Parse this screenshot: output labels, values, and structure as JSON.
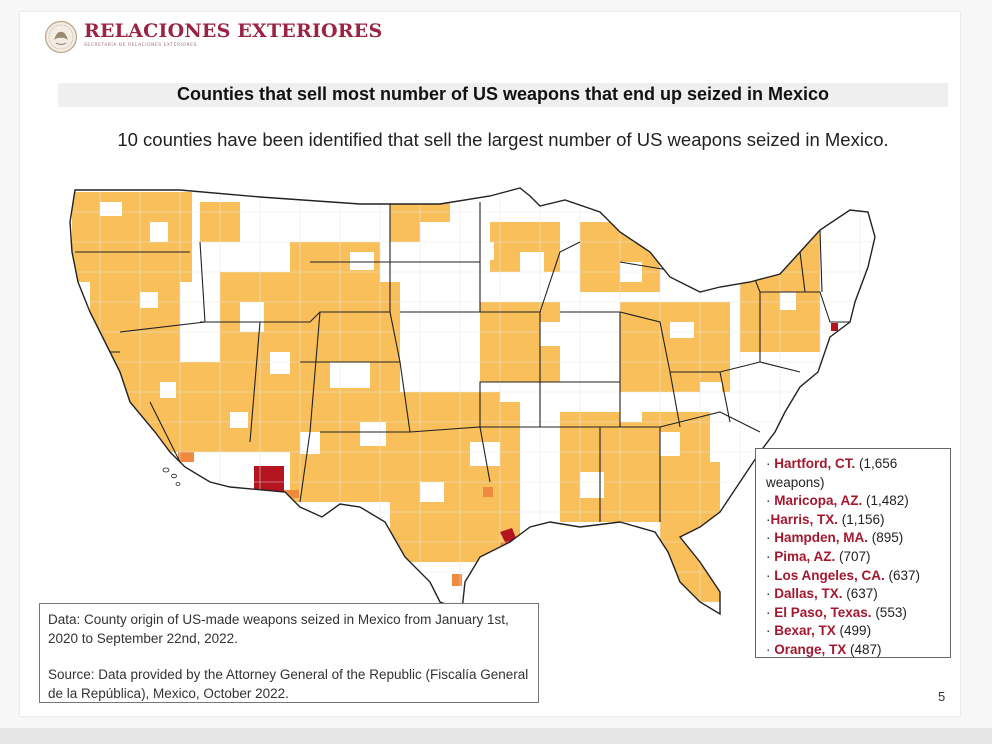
{
  "header": {
    "logo_icon": "mexican-eagle-seal-icon",
    "title": "RELACIONES EXTERIORES",
    "subtitle": "SECRETARÍA DE RELACIONES EXTERIORES",
    "brand_color": "#9a2445"
  },
  "title": "Counties that sell most number of US weapons that end up seized in Mexico",
  "subtitle": "10 counties have been identified that sell the largest number of US weapons seized in Mexico.",
  "map": {
    "icon": "us-county-map",
    "colors": {
      "low": "#f9bf5b",
      "medium": "#f08a3c",
      "high": "#b3141f",
      "none": "#ffffff",
      "border": "#222222"
    }
  },
  "legend": {
    "items": [
      {
        "name": "Hartford, CT.",
        "value": " (1,656 weapons)"
      },
      {
        "name": "Maricopa, AZ.",
        "value": " (1,482)"
      },
      {
        "name": "Harris, TX.",
        "value": " (1,156)"
      },
      {
        "name": "Hampden, MA.",
        "value": " (895)"
      },
      {
        "name": "Pima, AZ.",
        "value": " (707)"
      },
      {
        "name": "Los Angeles, CA.",
        "value": " (637)"
      },
      {
        "name": "Dallas, TX.",
        "value": " (637)"
      },
      {
        "name": "El Paso, Texas.",
        "value": " (553)"
      },
      {
        "name": "Bexar, TX",
        "value": " (499)"
      },
      {
        "name": "Orange, TX",
        "value": " (487)"
      }
    ]
  },
  "notes": {
    "data": "Data: County origin of US-made weapons seized in Mexico from January 1st, 2020 to September 22nd, 2022.",
    "source": "Source: Data provided by the Attorney General of the Republic (Fiscalía General de la República), Mexico, October 2022."
  },
  "page_number": "5"
}
